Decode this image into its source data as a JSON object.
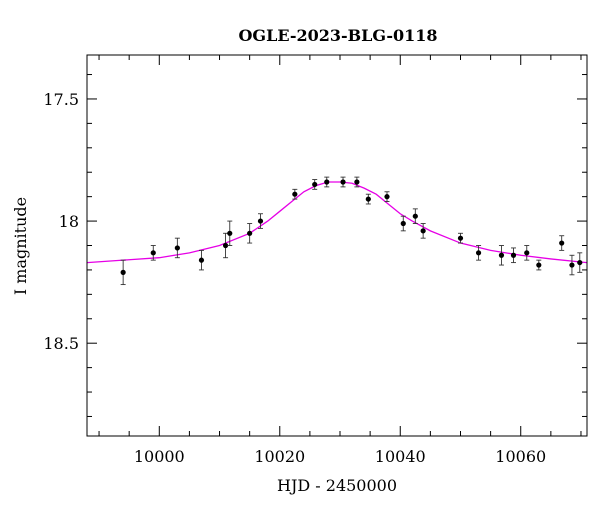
{
  "chart_data": {
    "type": "scatter",
    "title": "OGLE-2023-BLG-0118",
    "xlabel": "HJD - 2450000",
    "ylabel": "I magnitude",
    "xlim": [
      9988,
      10071
    ],
    "ylim": [
      18.88,
      17.32
    ],
    "y_inverted": true,
    "x_ticks": [
      10000,
      10020,
      10040,
      10060
    ],
    "x_tick_labels": [
      "10000",
      "10020",
      "10040",
      "10060"
    ],
    "y_ticks": [
      17.5,
      18,
      18.5
    ],
    "y_tick_labels": [
      "17.5",
      "18",
      "18.5"
    ],
    "x_minor_step": 5,
    "y_minor_step": 0.1,
    "grid": false,
    "points_color": "#000000",
    "model_color": "#e600e6",
    "points": [
      {
        "x": 9994.0,
        "y": 18.21,
        "err": 0.05
      },
      {
        "x": 9999.0,
        "y": 18.13,
        "err": 0.03
      },
      {
        "x": 10003.0,
        "y": 18.11,
        "err": 0.04
      },
      {
        "x": 10007.0,
        "y": 18.16,
        "err": 0.04
      },
      {
        "x": 10011.0,
        "y": 18.1,
        "err": 0.05
      },
      {
        "x": 10011.7,
        "y": 18.05,
        "err": 0.05
      },
      {
        "x": 10015.0,
        "y": 18.05,
        "err": 0.04
      },
      {
        "x": 10016.8,
        "y": 18.0,
        "err": 0.03
      },
      {
        "x": 10022.5,
        "y": 17.89,
        "err": 0.02
      },
      {
        "x": 10025.8,
        "y": 17.85,
        "err": 0.02
      },
      {
        "x": 10027.8,
        "y": 17.84,
        "err": 0.02
      },
      {
        "x": 10030.5,
        "y": 17.84,
        "err": 0.02
      },
      {
        "x": 10032.8,
        "y": 17.84,
        "err": 0.02
      },
      {
        "x": 10034.7,
        "y": 17.91,
        "err": 0.02
      },
      {
        "x": 10037.8,
        "y": 17.9,
        "err": 0.02
      },
      {
        "x": 10040.5,
        "y": 18.01,
        "err": 0.03
      },
      {
        "x": 10042.5,
        "y": 17.98,
        "err": 0.03
      },
      {
        "x": 10043.8,
        "y": 18.04,
        "err": 0.03
      },
      {
        "x": 10050.0,
        "y": 18.07,
        "err": 0.02
      },
      {
        "x": 10053.0,
        "y": 18.13,
        "err": 0.03
      },
      {
        "x": 10056.8,
        "y": 18.14,
        "err": 0.04
      },
      {
        "x": 10058.8,
        "y": 18.14,
        "err": 0.03
      },
      {
        "x": 10061.0,
        "y": 18.13,
        "err": 0.03
      },
      {
        "x": 10063.0,
        "y": 18.18,
        "err": 0.02
      },
      {
        "x": 10066.8,
        "y": 18.09,
        "err": 0.03
      },
      {
        "x": 10068.5,
        "y": 18.18,
        "err": 0.04
      },
      {
        "x": 10069.8,
        "y": 18.17,
        "err": 0.04
      }
    ],
    "model": {
      "x": [
        9988,
        9994,
        10000,
        10005,
        10010,
        10015,
        10018,
        10020,
        10022,
        10024,
        10026,
        10028,
        10030,
        10032,
        10034,
        10036,
        10038,
        10040,
        10042,
        10045,
        10050,
        10055,
        10060,
        10065,
        10071
      ],
      "y": [
        18.17,
        18.16,
        18.15,
        18.13,
        18.1,
        18.05,
        18.0,
        17.96,
        17.92,
        17.88,
        17.855,
        17.84,
        17.84,
        17.845,
        17.865,
        17.89,
        17.93,
        17.97,
        18.0,
        18.04,
        18.09,
        18.12,
        18.14,
        18.155,
        18.17
      ]
    }
  }
}
